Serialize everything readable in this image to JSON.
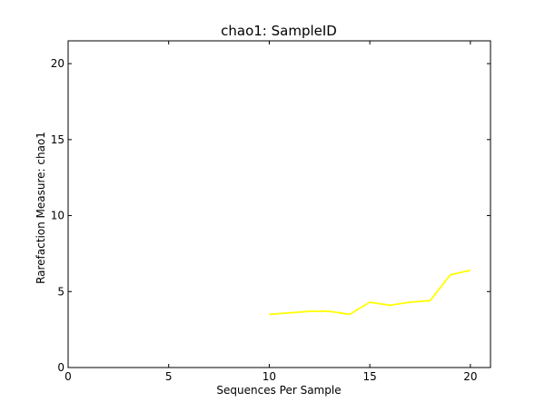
{
  "chart_data": {
    "type": "line",
    "title": "chao1: SampleID",
    "xlabel": "Sequences Per Sample",
    "ylabel": "Rarefaction Measure: chao1",
    "xlim": [
      0,
      21
    ],
    "ylim": [
      0,
      21.5
    ],
    "xticks": [
      0,
      5,
      10,
      15,
      20
    ],
    "yticks": [
      0,
      5,
      10,
      15,
      20
    ],
    "grid": false,
    "series": [
      {
        "color": "#ffff00",
        "x": [
          10,
          11,
          12,
          13,
          14,
          15,
          16,
          17,
          18,
          19,
          20
        ],
        "y": [
          3.5,
          3.6,
          3.7,
          3.7,
          3.5,
          4.3,
          4.1,
          4.3,
          4.4,
          6.1,
          6.4
        ]
      }
    ]
  }
}
